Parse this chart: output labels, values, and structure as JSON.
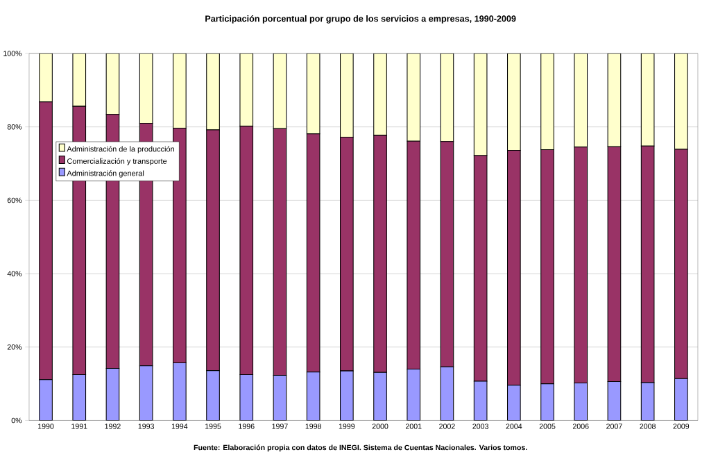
{
  "chart_data": {
    "type": "bar",
    "stacked": true,
    "title": "Participación porcentual por grupo de los servicios a empresas, 1990-2009",
    "annotations": [
      "Fuente: Elaboración propia con datos de INEGI. Sistema de Cuentas Nacionales. Varios tomos."
    ],
    "categories": [
      "1990",
      "1991",
      "1992",
      "1993",
      "1994",
      "1995",
      "1996",
      "1997",
      "1998",
      "1999",
      "2000",
      "2001",
      "2002",
      "2003",
      "2004",
      "2005",
      "2006",
      "2007",
      "2008",
      "2009"
    ],
    "series": [
      {
        "name": "Administración general",
        "color": "#9999ff",
        "values": [
          11.1,
          12.5,
          14.2,
          14.9,
          15.7,
          13.6,
          12.5,
          12.3,
          13.2,
          13.5,
          13.1,
          14.0,
          14.6,
          10.7,
          9.6,
          10.0,
          10.2,
          10.6,
          10.3,
          11.4
        ]
      },
      {
        "name": "Comercialización y transporte",
        "color": "#993366",
        "values": [
          75.7,
          73.1,
          69.2,
          66.1,
          63.9,
          65.6,
          67.7,
          67.2,
          64.9,
          63.7,
          64.6,
          62.1,
          61.4,
          61.5,
          64.0,
          63.8,
          64.3,
          64.0,
          64.5,
          62.5
        ]
      },
      {
        "name": "Administración de la producción",
        "color": "#ffffcc",
        "values": [
          13.2,
          14.4,
          16.6,
          19.0,
          20.4,
          20.8,
          19.8,
          20.5,
          21.9,
          22.8,
          22.3,
          23.9,
          24.0,
          27.8,
          26.4,
          26.2,
          25.5,
          25.4,
          25.2,
          26.1
        ]
      }
    ],
    "ylim": [
      0,
      100
    ],
    "yticks": [
      {
        "value": 0,
        "label": "0%"
      },
      {
        "value": 20,
        "label": "20%"
      },
      {
        "value": 40,
        "label": "40%"
      },
      {
        "value": 60,
        "label": "60%"
      },
      {
        "value": 80,
        "label": "80%"
      },
      {
        "value": 100,
        "label": "100%"
      }
    ],
    "grid": "y",
    "legend": "left"
  }
}
